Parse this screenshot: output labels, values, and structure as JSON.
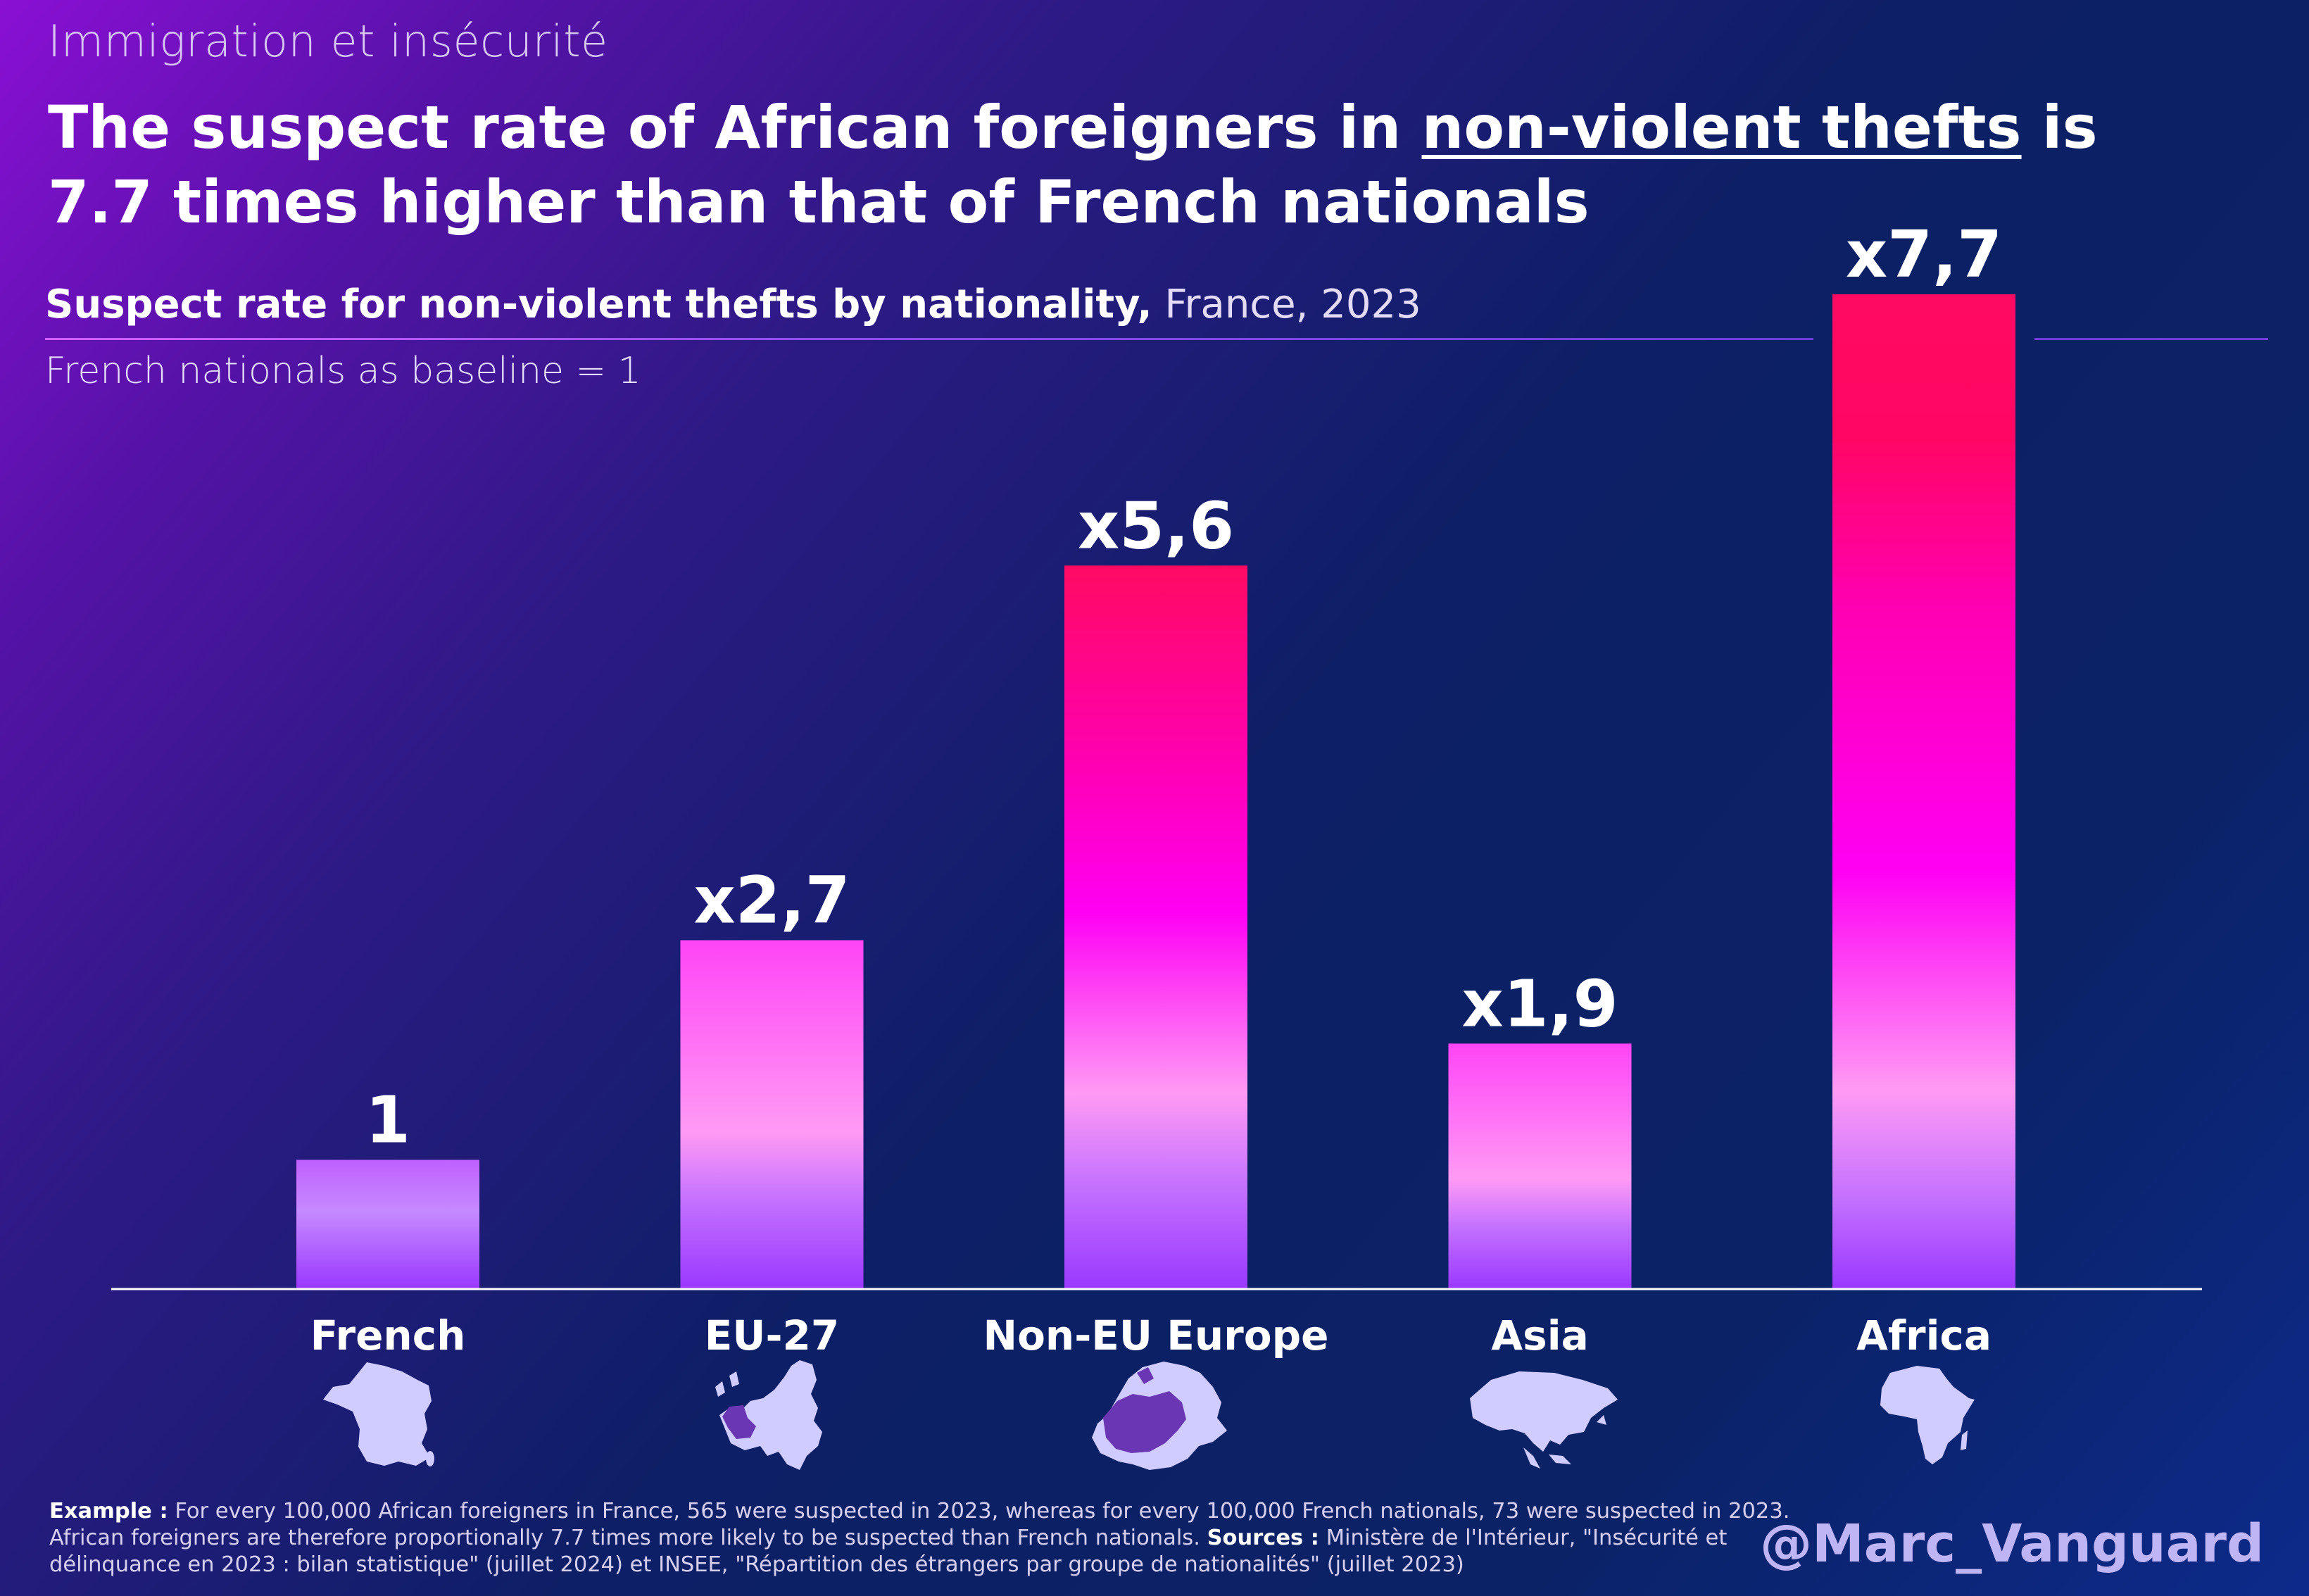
{
  "kicker": "Immigration et insécurité",
  "headline": {
    "part1": "The suspect rate of African foreigners in ",
    "highlight": "non-violent thefts",
    "part2": " is 7.7 times higher than that of French nationals"
  },
  "subtitle": {
    "bold": "Suspect rate for non-violent thefts by nationality,",
    "normal": " France, 2023"
  },
  "baseline_note": "French nationals as baseline = 1",
  "colors": {
    "bar_low": "#9a38ff",
    "bar_mid": "#ff9af4",
    "bar_magenta": "#ff00f4",
    "bar_high": "#ff0a62",
    "axis": "#ffffff",
    "map_fill": "#d0ccff",
    "map_highlight": "#6a36b4"
  },
  "chart_data": {
    "type": "bar",
    "title": "Suspect rate for non-violent thefts by nationality, France, 2023",
    "xlabel": "",
    "ylabel": "",
    "categories": [
      "French",
      "EU-27",
      "Non-EU Europe",
      "Asia",
      "Africa"
    ],
    "values": [
      1,
      2.7,
      5.6,
      1.9,
      7.7
    ],
    "value_labels": [
      "1",
      "x2,7",
      "x5,6",
      "x1,9",
      "x7,7"
    ],
    "ylim": [
      0,
      7.7
    ],
    "grid": false,
    "legend": "none",
    "icons": [
      "france-map-icon",
      "eu27-map-icon",
      "non-eu-europe-map-icon",
      "asia-map-icon",
      "africa-map-icon"
    ]
  },
  "footnote": {
    "example_label": "Example :",
    "example_text": " For every 100,000 African foreigners in France, 565 were suspected in 2023, whereas for every 100,000 French nationals, 73 were suspected in 2023. African foreigners are therefore proportionally 7.7 times more likely to be suspected than French nationals. ",
    "sources_label": "Sources :",
    "sources_text": " Ministère de l'Intérieur, \"Insécurité et délinquance en 2023 : bilan statistique\" (juillet 2024) et INSEE, \"Répartition des étrangers par groupe de nationalités\" (juillet 2023)"
  },
  "handle": "@Marc_Vanguard"
}
